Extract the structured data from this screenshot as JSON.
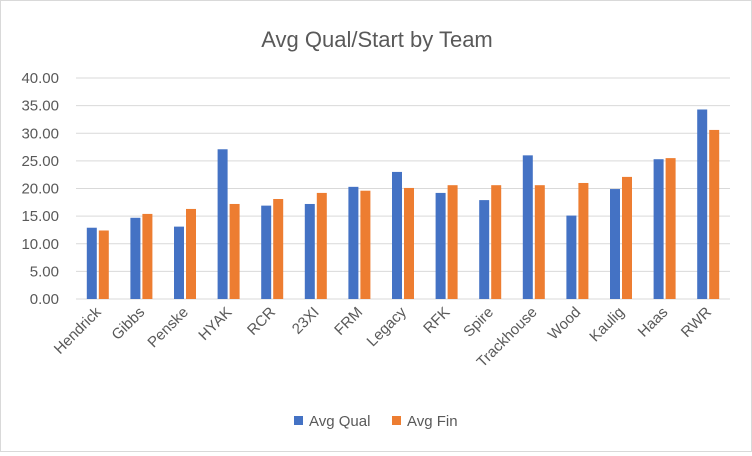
{
  "chart_data": {
    "type": "bar",
    "title": "Avg Qual/Start by Team",
    "xlabel": "",
    "ylabel": "",
    "ylim": [
      0,
      40
    ],
    "yticks": [
      "0.00",
      "5.00",
      "10.00",
      "15.00",
      "20.00",
      "25.00",
      "30.00",
      "35.00",
      "40.00"
    ],
    "grid": true,
    "legend_position": "bottom",
    "categories": [
      "Hendrick",
      "Gibbs",
      "Penske",
      "HYAK",
      "RCR",
      "23XI",
      "FRM",
      "Legacy",
      "RFK",
      "Spire",
      "Trackhouse",
      "Wood",
      "Kaulig",
      "Haas",
      "RWR"
    ],
    "series": [
      {
        "name": "Avg Qual",
        "color": "#4472C4",
        "values": [
          12.9,
          14.7,
          13.1,
          27.1,
          16.9,
          17.2,
          20.3,
          23.0,
          19.2,
          17.9,
          26.0,
          15.1,
          19.9,
          25.3,
          34.3
        ]
      },
      {
        "name": "Avg Fin",
        "color": "#ED7D31",
        "values": [
          12.4,
          15.4,
          16.3,
          17.2,
          18.1,
          19.2,
          19.6,
          20.1,
          20.6,
          20.6,
          20.6,
          21.0,
          22.1,
          25.5,
          30.6
        ]
      }
    ]
  }
}
